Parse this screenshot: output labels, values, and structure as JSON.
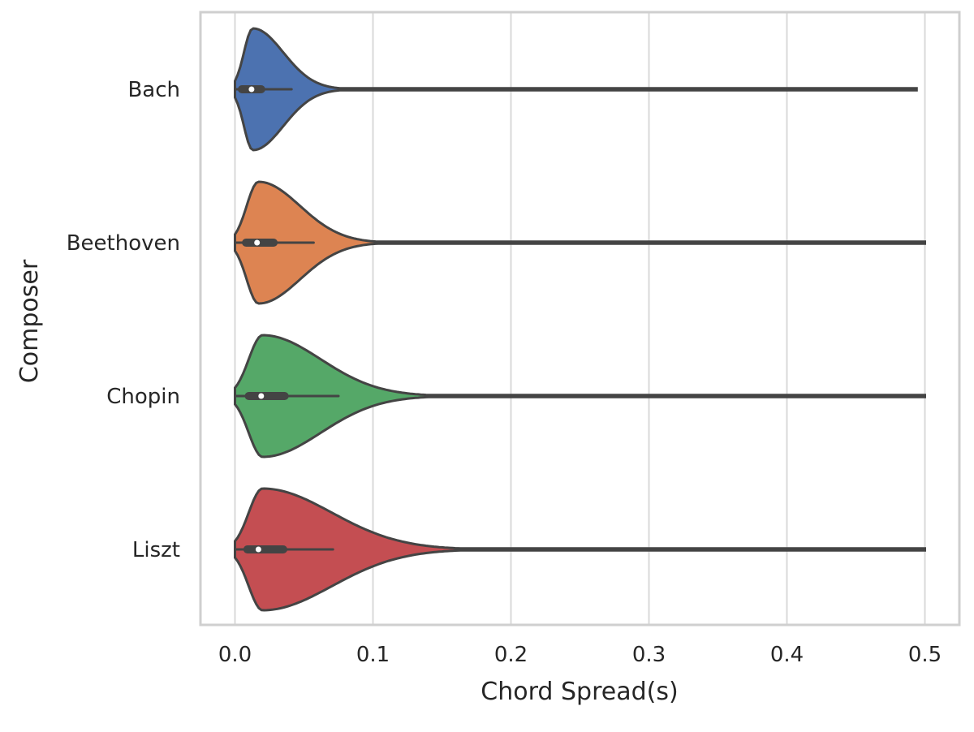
{
  "chart_data": {
    "type": "violin",
    "orientation": "horizontal",
    "title": "",
    "xlabel": "Chord Spread(s)",
    "ylabel": "Composer",
    "xlim": [
      -0.025,
      0.525
    ],
    "xticks": [
      0.0,
      0.1,
      0.2,
      0.3,
      0.4,
      0.5
    ],
    "xtick_labels": [
      "0.0",
      "0.1",
      "0.2",
      "0.3",
      "0.4",
      "0.5"
    ],
    "grid": "vertical",
    "categories": [
      "Bach",
      "Beethoven",
      "Chopin",
      "Liszt"
    ],
    "series": [
      {
        "category": "Bach",
        "color": "#4c72b0",
        "min": 0.0,
        "q1": 0.005,
        "median": 0.012,
        "q3": 0.019,
        "whisker_high": 0.041,
        "max": 0.494,
        "mode": 0.013,
        "spread": 0.022
      },
      {
        "category": "Beethoven",
        "color": "#dd8452",
        "min": 0.0,
        "q1": 0.008,
        "median": 0.016,
        "q3": 0.028,
        "whisker_high": 0.057,
        "max": 0.5,
        "mode": 0.017,
        "spread": 0.03
      },
      {
        "category": "Chopin",
        "color": "#55a868",
        "min": 0.0,
        "q1": 0.01,
        "median": 0.019,
        "q3": 0.036,
        "whisker_high": 0.075,
        "max": 0.5,
        "mode": 0.02,
        "spread": 0.042
      },
      {
        "category": "Liszt",
        "color": "#c44e52",
        "min": 0.0,
        "q1": 0.009,
        "median": 0.017,
        "q3": 0.035,
        "whisker_high": 0.071,
        "max": 0.5,
        "mode": 0.02,
        "spread": 0.05
      }
    ]
  }
}
